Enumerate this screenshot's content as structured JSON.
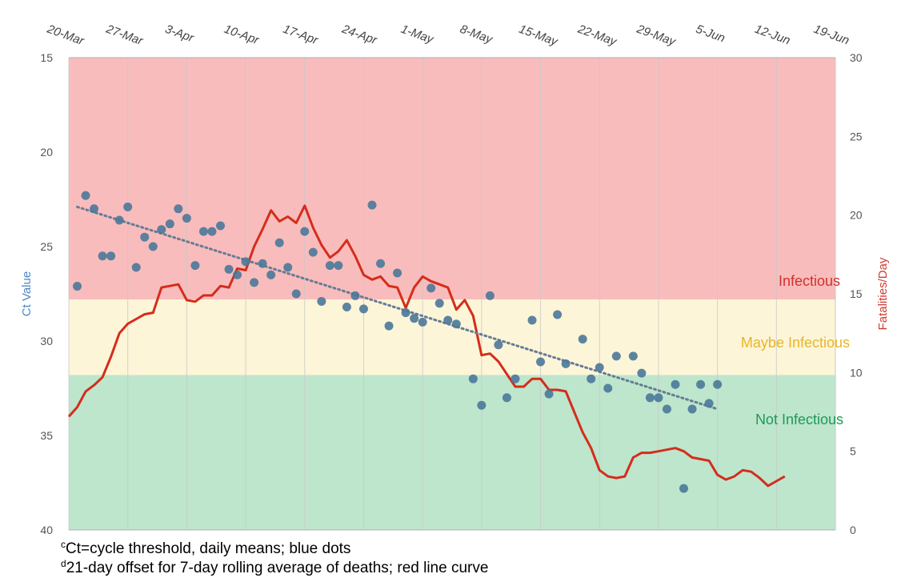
{
  "chart_data": {
    "type": "scatter",
    "title": "",
    "x_tick_labels": [
      "20-Mar",
      "27-Mar",
      "3-Apr",
      "10-Apr",
      "17-Apr",
      "24-Apr",
      "1-May",
      "8-May",
      "15-May",
      "22-May",
      "29-May",
      "5-Jun",
      "12-Jun",
      "19-Jun"
    ],
    "ylabel_left": "Ct Value",
    "ylabel_right": "Fatalities/Day",
    "y_left_ticks": [
      "15",
      "20",
      "25",
      "30",
      "35",
      "40"
    ],
    "y_right_ticks": [
      "30",
      "25",
      "20",
      "15",
      "10",
      "5",
      "0"
    ],
    "ylim_left": [
      40,
      15
    ],
    "ylim_right": [
      0,
      30
    ],
    "left_axis_inverted": true,
    "grid": true,
    "zones": [
      {
        "label": "Infectious",
        "ct_range": [
          15,
          27.8
        ],
        "fill": "#f9bcbc",
        "label_color": "#d0312d"
      },
      {
        "label": "Maybe Infectious",
        "ct_range": [
          27.8,
          31.8
        ],
        "fill": "#fdf5d8",
        "label_color": "#e8b528"
      },
      {
        "label": "Not Infectious",
        "ct_range": [
          31.8,
          40
        ],
        "fill": "#bde6cd",
        "label_color": "#1e9a56"
      }
    ],
    "series": [
      {
        "kind": "scatter",
        "axis": "left",
        "color": "#4a7899",
        "points": [
          [
            1,
            27.1
          ],
          [
            2,
            22.3
          ],
          [
            3,
            23.0
          ],
          [
            4,
            25.5
          ],
          [
            5,
            25.5
          ],
          [
            6,
            23.6
          ],
          [
            7,
            22.9
          ],
          [
            8,
            26.1
          ],
          [
            9,
            24.5
          ],
          [
            10,
            25.0
          ],
          [
            11,
            24.1
          ],
          [
            12,
            23.8
          ],
          [
            13,
            23.0
          ],
          [
            14,
            23.5
          ],
          [
            15,
            26.0
          ],
          [
            16,
            24.2
          ],
          [
            17,
            24.2
          ],
          [
            18,
            23.9
          ],
          [
            19,
            26.2
          ],
          [
            20,
            26.5
          ],
          [
            21,
            25.8
          ],
          [
            22,
            26.9
          ],
          [
            23,
            25.9
          ],
          [
            24,
            26.5
          ],
          [
            25,
            24.8
          ],
          [
            26,
            26.1
          ],
          [
            27,
            27.5
          ],
          [
            28,
            24.2
          ],
          [
            29,
            25.3
          ],
          [
            30,
            27.9
          ],
          [
            31,
            26.0
          ],
          [
            32,
            26.0
          ],
          [
            33,
            28.2
          ],
          [
            34,
            27.6
          ],
          [
            35,
            28.3
          ],
          [
            36,
            22.8
          ],
          [
            37,
            25.9
          ],
          [
            38,
            29.2
          ],
          [
            39,
            26.4
          ],
          [
            40,
            28.5
          ],
          [
            41,
            28.8
          ],
          [
            42,
            29.0
          ],
          [
            43,
            27.2
          ],
          [
            44,
            28.0
          ],
          [
            45,
            28.9
          ],
          [
            46,
            29.1
          ],
          [
            48,
            32.0
          ],
          [
            49,
            33.4
          ],
          [
            50,
            27.6
          ],
          [
            51,
            30.2
          ],
          [
            52,
            33.0
          ],
          [
            53,
            32.0
          ],
          [
            55,
            28.9
          ],
          [
            56,
            31.1
          ],
          [
            57,
            32.8
          ],
          [
            58,
            28.6
          ],
          [
            59,
            31.2
          ],
          [
            61,
            29.9
          ],
          [
            62,
            32.0
          ],
          [
            63,
            31.4
          ],
          [
            64,
            32.5
          ],
          [
            65,
            30.8
          ],
          [
            67,
            30.8
          ],
          [
            68,
            31.7
          ],
          [
            69,
            33.0
          ],
          [
            70,
            33.0
          ],
          [
            71,
            33.6
          ],
          [
            72,
            32.3
          ],
          [
            73,
            37.8
          ],
          [
            74,
            33.6
          ],
          [
            75,
            32.3
          ],
          [
            76,
            33.3
          ],
          [
            77,
            32.3
          ]
        ]
      },
      {
        "kind": "line",
        "axis": "right",
        "color": "#d42d1b",
        "name": "",
        "points": [
          [
            0,
            7.2
          ],
          [
            1,
            7.8
          ],
          [
            2,
            8.8
          ],
          [
            3,
            9.2
          ],
          [
            4,
            9.7
          ],
          [
            5,
            11.0
          ],
          [
            6,
            12.5
          ],
          [
            7,
            13.1
          ],
          [
            8,
            13.4
          ],
          [
            9,
            13.7
          ],
          [
            10,
            13.8
          ],
          [
            11,
            15.4
          ],
          [
            12,
            15.5
          ],
          [
            13,
            15.6
          ],
          [
            14,
            14.6
          ],
          [
            15,
            14.5
          ],
          [
            16,
            14.9
          ],
          [
            17,
            14.9
          ],
          [
            18,
            15.5
          ],
          [
            19,
            15.4
          ],
          [
            20,
            16.6
          ],
          [
            21,
            16.5
          ],
          [
            22,
            18.0
          ],
          [
            23,
            19.1
          ],
          [
            24,
            20.3
          ],
          [
            25,
            19.6
          ],
          [
            26,
            19.9
          ],
          [
            27,
            19.5
          ],
          [
            28,
            20.6
          ],
          [
            29,
            19.2
          ],
          [
            30,
            18.1
          ],
          [
            31,
            17.3
          ],
          [
            32,
            17.7
          ],
          [
            33,
            18.4
          ],
          [
            34,
            17.4
          ],
          [
            35,
            16.2
          ],
          [
            36,
            15.9
          ],
          [
            37,
            16.1
          ],
          [
            38,
            15.5
          ],
          [
            39,
            15.4
          ],
          [
            40,
            14.1
          ],
          [
            41,
            15.4
          ],
          [
            42,
            16.1
          ],
          [
            43,
            15.8
          ],
          [
            44,
            15.6
          ],
          [
            45,
            15.4
          ],
          [
            46,
            14.0
          ],
          [
            47,
            14.6
          ],
          [
            48,
            13.6
          ],
          [
            49,
            11.1
          ],
          [
            50,
            11.2
          ],
          [
            51,
            10.7
          ],
          [
            52,
            9.9
          ],
          [
            53,
            9.1
          ],
          [
            54,
            9.1
          ],
          [
            55,
            9.6
          ],
          [
            56,
            9.6
          ],
          [
            57,
            8.9
          ],
          [
            58,
            8.9
          ],
          [
            59,
            8.8
          ],
          [
            60,
            7.5
          ],
          [
            61,
            6.2
          ],
          [
            62,
            5.2
          ],
          [
            63,
            3.8
          ],
          [
            64,
            3.4
          ],
          [
            65,
            3.3
          ],
          [
            66,
            3.4
          ],
          [
            67,
            4.6
          ],
          [
            68,
            4.9
          ],
          [
            69,
            4.9
          ],
          [
            70,
            5.0
          ],
          [
            71,
            5.1
          ],
          [
            72,
            5.2
          ],
          [
            73,
            5.0
          ],
          [
            74,
            4.6
          ],
          [
            75,
            4.5
          ],
          [
            76,
            4.4
          ],
          [
            77,
            3.5
          ],
          [
            78,
            3.2
          ],
          [
            79,
            3.4
          ],
          [
            80,
            3.8
          ],
          [
            81,
            3.7
          ],
          [
            82,
            3.3
          ],
          [
            83,
            2.8
          ],
          [
            84,
            3.1
          ],
          [
            85,
            3.4
          ]
        ]
      },
      {
        "kind": "trendline",
        "axis": "left",
        "color": "#657c95",
        "points": [
          [
            1,
            22.9
          ],
          [
            77,
            33.6
          ]
        ]
      }
    ],
    "x_range_days": [
      0,
      91
    ]
  },
  "footnotes": {
    "c": {
      "marker": "c",
      "text": "Ct=cycle threshold, daily means; blue dots"
    },
    "d": {
      "marker": "d",
      "text": "21-day offset for 7-day rolling average of deaths; red line curve"
    }
  }
}
